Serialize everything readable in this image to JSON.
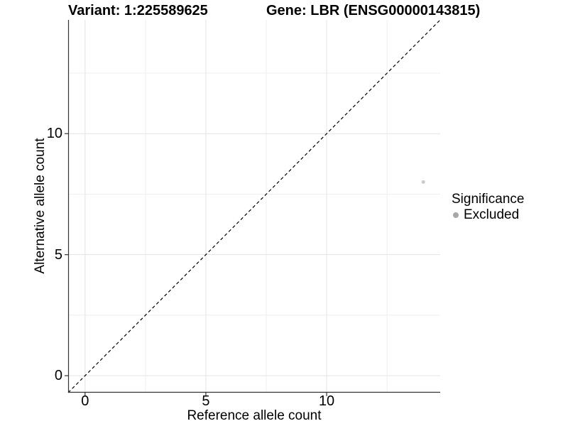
{
  "figure": {
    "background": "#ffffff"
  },
  "chart_data": {
    "type": "scatter",
    "title_left": "Variant: 1:225589625",
    "title_right": "Gene: LBR (ENSG00000143815)",
    "xlabel": "Reference allele count",
    "ylabel": "Alternative allele count",
    "xlim": [
      -0.7,
      14.7
    ],
    "ylim": [
      -0.7,
      14.7
    ],
    "x_ticks": [
      "0",
      "5",
      "10"
    ],
    "x_tick_values": [
      0,
      5,
      10
    ],
    "y_ticks": [
      "0",
      "5",
      "10"
    ],
    "y_tick_values": [
      0,
      5,
      10
    ],
    "grid_major": [
      0,
      5,
      10
    ],
    "grid_minor": [
      2.5,
      7.5,
      12.5
    ],
    "grid": true,
    "series": [
      {
        "name": "Excluded",
        "color": "#c9c9c9",
        "point_radius": 2.5,
        "points": [
          {
            "x": 14,
            "y": 8
          }
        ]
      }
    ],
    "reference_line": {
      "style": "dashed",
      "slope": 1,
      "intercept": 0,
      "from": -0.7,
      "to": 14.7,
      "dash": "4.5,3.5"
    },
    "legend": {
      "title": "Significance",
      "position": "right",
      "entries": [
        {
          "label": "Excluded",
          "color": "#a8a8a8"
        }
      ]
    },
    "colors": {
      "grid_major": "#e4e4e4",
      "grid_minor": "#efefef",
      "axis_line": "#333333",
      "identity_line": "#000000",
      "text": "#000000"
    }
  }
}
